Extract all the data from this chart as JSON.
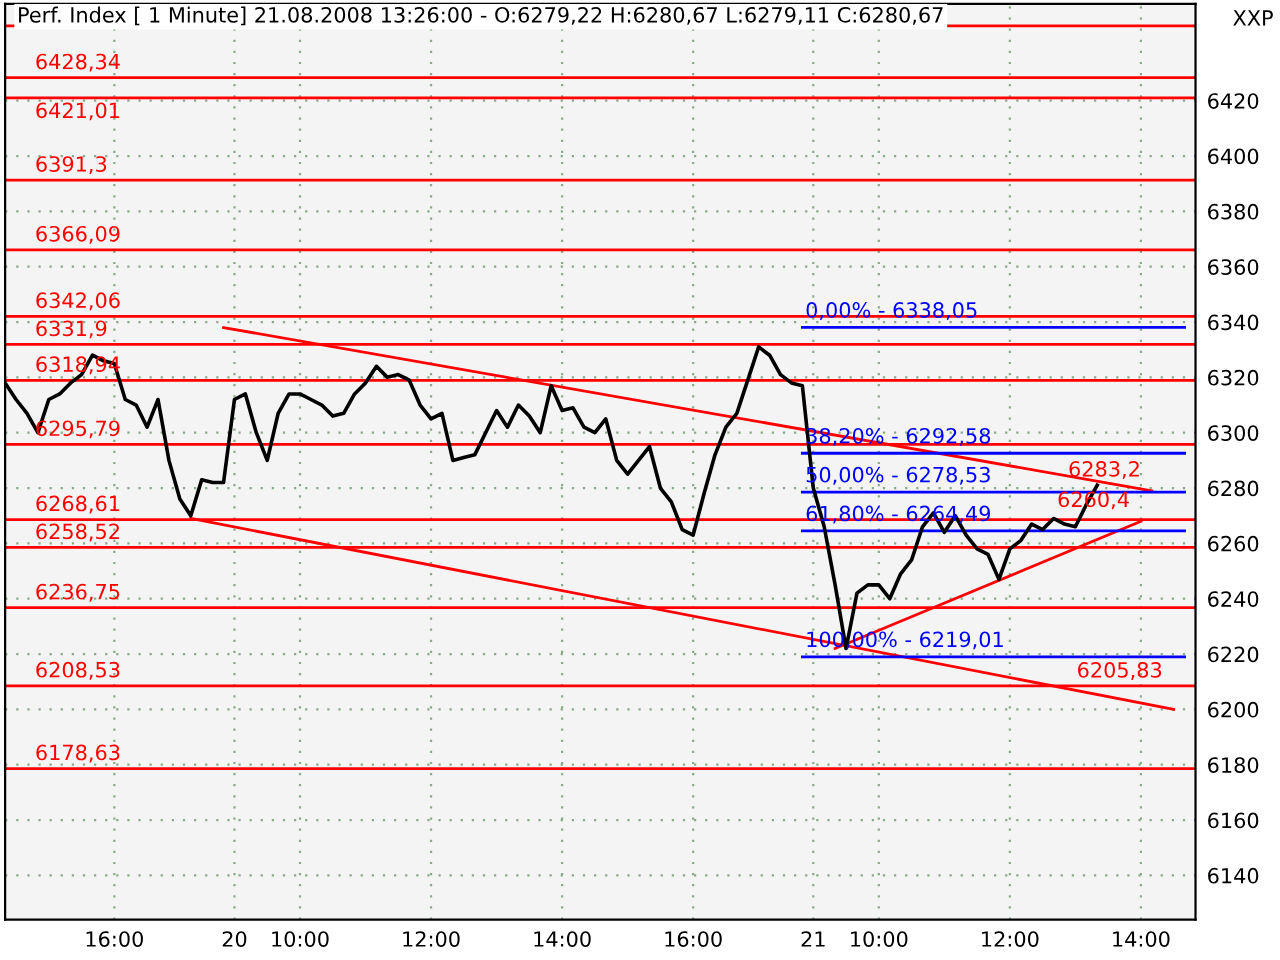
{
  "chart_data": {
    "type": "line",
    "title": "Perf. Index [ 1 Minute] 21.08.2008 13:26:00 - O:6279,22 H:6280,67 L:6279,11 C:6280,67",
    "annotations": [
      "XXP"
    ],
    "categories": [
      null,
      null,
      null,
      null,
      null,
      null,
      null,
      null,
      null,
      null,
      "16:00",
      null,
      null,
      null,
      null,
      null,
      null,
      null,
      null,
      null,
      null,
      "20",
      null,
      null,
      null,
      null,
      null,
      "10:00",
      null,
      null,
      null,
      null,
      null,
      null,
      null,
      null,
      null,
      null,
      null,
      "12:00",
      null,
      null,
      null,
      null,
      null,
      null,
      null,
      null,
      null,
      null,
      null,
      "14:00",
      null,
      null,
      null,
      null,
      null,
      null,
      null,
      null,
      null,
      null,
      null,
      "16:00",
      null,
      null,
      null,
      null,
      null,
      null,
      null,
      null,
      null,
      null,
      "21",
      null,
      null,
      null,
      null,
      null,
      "10:00",
      null,
      null,
      null,
      null,
      null,
      null,
      null,
      null,
      null,
      null,
      null,
      "12:00",
      null,
      null,
      null,
      null,
      null,
      null,
      null,
      null,
      null,
      null,
      null,
      "14:00",
      null,
      null,
      null,
      null
    ],
    "series": [
      {
        "color": "#000000",
        "values": [
          6318,
          6312,
          6307,
          6300,
          6312,
          6314,
          6318,
          6321,
          6328,
          6326,
          6325,
          6312,
          6310,
          6302,
          6312,
          6290,
          6276,
          6270,
          6283,
          6282,
          6282,
          6312,
          6314,
          6300,
          6290,
          6307,
          6314,
          6314,
          6312,
          6310,
          6306,
          6307,
          6314,
          6318,
          6324,
          6320,
          6321,
          6319,
          6310,
          6305,
          6307,
          6290,
          6291,
          6292,
          6300,
          6308,
          6302,
          6310,
          6306,
          6300,
          6317,
          6308,
          6309,
          6302,
          6300,
          6305,
          6290,
          6285,
          6290,
          6295,
          6280,
          6275,
          6265,
          6263,
          6278,
          6292,
          6302,
          6307,
          6319,
          6331,
          6328,
          6321,
          6318,
          6317,
          6280,
          6266,
          6245,
          6222,
          6242,
          6245,
          6245,
          6240,
          6249,
          6254,
          6266,
          6271,
          6264,
          6270,
          6263,
          6258,
          6256,
          6247,
          6258,
          6261,
          6267,
          6265,
          6269,
          6267,
          6266,
          6274,
          6281,
          null,
          null,
          null,
          null,
          null,
          null,
          null,
          null
        ]
      },
      {
        "name": "6283,2",
        "color": "#ff0000",
        "values": [
          null,
          null,
          null,
          null,
          null,
          null,
          null,
          null,
          null,
          null,
          null,
          null,
          null,
          null,
          null,
          null,
          null,
          null,
          null,
          null,
          6338,
          null,
          null,
          null,
          null,
          null,
          null,
          null,
          null,
          null,
          null,
          null,
          null,
          null,
          null,
          null,
          null,
          null,
          null,
          null,
          null,
          null,
          null,
          null,
          null,
          null,
          null,
          null,
          null,
          null,
          null,
          null,
          null,
          null,
          null,
          null,
          null,
          null,
          null,
          null,
          null,
          null,
          null,
          null,
          null,
          null,
          null,
          null,
          null,
          null,
          null,
          null,
          null,
          null,
          null,
          null,
          null,
          null,
          null,
          null,
          null,
          null,
          null,
          null,
          null,
          null,
          null,
          null,
          null,
          null,
          null,
          null,
          null,
          null,
          null,
          null,
          null,
          null,
          null,
          null,
          null,
          null,
          null,
          null,
          null,
          6279,
          null,
          null,
          null
        ]
      },
      {
        "name": "6205,83",
        "color": "#ff0000",
        "values": [
          null,
          null,
          null,
          null,
          null,
          null,
          null,
          null,
          null,
          null,
          null,
          null,
          null,
          null,
          null,
          null,
          null,
          6269,
          null,
          null,
          null,
          null,
          null,
          null,
          null,
          null,
          null,
          null,
          null,
          null,
          null,
          null,
          null,
          null,
          null,
          null,
          null,
          null,
          null,
          null,
          null,
          null,
          null,
          null,
          null,
          null,
          null,
          null,
          null,
          null,
          null,
          null,
          null,
          null,
          null,
          null,
          null,
          null,
          null,
          null,
          null,
          null,
          null,
          null,
          null,
          null,
          null,
          null,
          null,
          null,
          null,
          null,
          null,
          null,
          null,
          null,
          null,
          null,
          null,
          null,
          null,
          null,
          null,
          null,
          null,
          null,
          null,
          null,
          null,
          null,
          null,
          null,
          null,
          null,
          null,
          null,
          null,
          null,
          null,
          null,
          null,
          null,
          null,
          null,
          null,
          null,
          null,
          6200,
          null
        ]
      },
      {
        "name": "6260,4",
        "color": "#ff0000",
        "values": [
          null,
          null,
          null,
          null,
          null,
          null,
          null,
          null,
          null,
          null,
          null,
          null,
          null,
          null,
          null,
          null,
          null,
          null,
          null,
          null,
          null,
          null,
          null,
          null,
          null,
          null,
          null,
          null,
          null,
          null,
          null,
          null,
          null,
          null,
          null,
          null,
          null,
          null,
          null,
          null,
          null,
          null,
          null,
          null,
          null,
          null,
          null,
          null,
          null,
          null,
          null,
          null,
          null,
          null,
          null,
          null,
          null,
          null,
          null,
          null,
          null,
          null,
          null,
          null,
          null,
          null,
          null,
          null,
          null,
          null,
          null,
          null,
          null,
          null,
          null,
          null,
          6222,
          null,
          null,
          null,
          null,
          null,
          null,
          null,
          null,
          null,
          null,
          null,
          null,
          null,
          null,
          null,
          null,
          null,
          null,
          null,
          null,
          null,
          null,
          null,
          null,
          null,
          null,
          null,
          6268,
          null,
          null,
          null,
          null
        ]
      },
      {
        "name": "0,00% - 6338,05",
        "color": "#0000ff",
        "values": [
          null,
          null,
          null,
          null,
          null,
          null,
          null,
          null,
          null,
          null,
          null,
          null,
          null,
          null,
          null,
          null,
          null,
          null,
          null,
          null,
          null,
          null,
          null,
          null,
          null,
          null,
          null,
          null,
          null,
          null,
          null,
          null,
          null,
          null,
          null,
          null,
          null,
          null,
          null,
          null,
          null,
          null,
          null,
          null,
          null,
          null,
          null,
          null,
          null,
          null,
          null,
          null,
          null,
          null,
          null,
          null,
          null,
          null,
          null,
          null,
          null,
          null,
          null,
          null,
          null,
          null,
          null,
          null,
          null,
          null,
          null,
          null,
          null,
          6338.05,
          null,
          null,
          null,
          null,
          null,
          null,
          null,
          null,
          null,
          null,
          null,
          null,
          null,
          null,
          null,
          null,
          null,
          null,
          null,
          null,
          null,
          null,
          null,
          null,
          null,
          null,
          null,
          null,
          null,
          null,
          null,
          null,
          null,
          null,
          6338.05
        ]
      },
      {
        "name": "38,20% - 6292,58",
        "color": "#0000ff",
        "values": [
          null,
          null,
          null,
          null,
          null,
          null,
          null,
          null,
          null,
          null,
          null,
          null,
          null,
          null,
          null,
          null,
          null,
          null,
          null,
          null,
          null,
          null,
          null,
          null,
          null,
          null,
          null,
          null,
          null,
          null,
          null,
          null,
          null,
          null,
          null,
          null,
          null,
          null,
          null,
          null,
          null,
          null,
          null,
          null,
          null,
          null,
          null,
          null,
          null,
          null,
          null,
          null,
          null,
          null,
          null,
          null,
          null,
          null,
          null,
          null,
          null,
          null,
          null,
          null,
          null,
          null,
          null,
          null,
          null,
          null,
          null,
          null,
          null,
          6292.58,
          null,
          null,
          null,
          null,
          null,
          null,
          null,
          null,
          null,
          null,
          null,
          null,
          null,
          null,
          null,
          null,
          null,
          null,
          null,
          null,
          null,
          null,
          null,
          null,
          null,
          null,
          null,
          null,
          null,
          null,
          null,
          null,
          null,
          null,
          6292.58
        ]
      },
      {
        "name": "50,00% - 6278,53",
        "color": "#0000ff",
        "values": [
          null,
          null,
          null,
          null,
          null,
          null,
          null,
          null,
          null,
          null,
          null,
          null,
          null,
          null,
          null,
          null,
          null,
          null,
          null,
          null,
          null,
          null,
          null,
          null,
          null,
          null,
          null,
          null,
          null,
          null,
          null,
          null,
          null,
          null,
          null,
          null,
          null,
          null,
          null,
          null,
          null,
          null,
          null,
          null,
          null,
          null,
          null,
          null,
          null,
          null,
          null,
          null,
          null,
          null,
          null,
          null,
          null,
          null,
          null,
          null,
          null,
          null,
          null,
          null,
          null,
          null,
          null,
          null,
          null,
          null,
          null,
          null,
          null,
          6278.53,
          null,
          null,
          null,
          null,
          null,
          null,
          null,
          null,
          null,
          null,
          null,
          null,
          null,
          null,
          null,
          null,
          null,
          null,
          null,
          null,
          null,
          null,
          null,
          null,
          null,
          null,
          null,
          null,
          null,
          null,
          null,
          null,
          null,
          null,
          6278.53
        ]
      },
      {
        "name": "61,80% - 6264,49",
        "color": "#0000ff",
        "values": [
          null,
          null,
          null,
          null,
          null,
          null,
          null,
          null,
          null,
          null,
          null,
          null,
          null,
          null,
          null,
          null,
          null,
          null,
          null,
          null,
          null,
          null,
          null,
          null,
          null,
          null,
          null,
          null,
          null,
          null,
          null,
          null,
          null,
          null,
          null,
          null,
          null,
          null,
          null,
          null,
          null,
          null,
          null,
          null,
          null,
          null,
          null,
          null,
          null,
          null,
          null,
          null,
          null,
          null,
          null,
          null,
          null,
          null,
          null,
          null,
          null,
          null,
          null,
          null,
          null,
          null,
          null,
          null,
          null,
          null,
          null,
          null,
          null,
          6264.49,
          null,
          null,
          null,
          null,
          null,
          null,
          null,
          null,
          null,
          null,
          null,
          null,
          null,
          null,
          null,
          null,
          null,
          null,
          null,
          null,
          null,
          null,
          null,
          null,
          null,
          null,
          null,
          null,
          null,
          null,
          null,
          null,
          null,
          null,
          6264.49
        ]
      },
      {
        "name": "100,00% - 6219,01",
        "color": "#0000ff",
        "values": [
          null,
          null,
          null,
          null,
          null,
          null,
          null,
          null,
          null,
          null,
          null,
          null,
          null,
          null,
          null,
          null,
          null,
          null,
          null,
          null,
          null,
          null,
          null,
          null,
          null,
          null,
          null,
          null,
          null,
          null,
          null,
          null,
          null,
          null,
          null,
          null,
          null,
          null,
          null,
          null,
          null,
          null,
          null,
          null,
          null,
          null,
          null,
          null,
          null,
          null,
          null,
          null,
          null,
          null,
          null,
          null,
          null,
          null,
          null,
          null,
          null,
          null,
          null,
          null,
          null,
          null,
          null,
          null,
          null,
          null,
          null,
          null,
          null,
          6219.01,
          null,
          null,
          null,
          null,
          null,
          null,
          null,
          null,
          null,
          null,
          null,
          null,
          null,
          null,
          null,
          null,
          null,
          null,
          null,
          null,
          null,
          null,
          null,
          null,
          null,
          null,
          null,
          null,
          null,
          null,
          null,
          null,
          null,
          null,
          6219.01
        ]
      }
    ],
    "ylim": [
      6124,
      6455
    ],
    "yticks": [
      6140,
      6160,
      6180,
      6200,
      6220,
      6240,
      6260,
      6280,
      6300,
      6320,
      6340,
      6360,
      6380,
      6400,
      6420
    ],
    "ref_lines": [
      {
        "axis": "y",
        "value": 6447,
        "color": "#ff0000"
      },
      {
        "axis": "y",
        "value": 6428.34,
        "label": "6428,34",
        "color": "#ff0000"
      },
      {
        "axis": "y",
        "value": 6421.01,
        "label": "6421,01",
        "color": "#ff0000"
      },
      {
        "axis": "y",
        "value": 6391.3,
        "label": "6391,3",
        "color": "#ff0000"
      },
      {
        "axis": "y",
        "value": 6366.09,
        "label": "6366,09",
        "color": "#ff0000"
      },
      {
        "axis": "y",
        "value": 6342.06,
        "label": "6342,06",
        "color": "#ff0000"
      },
      {
        "axis": "y",
        "value": 6331.9,
        "label": "6331,9",
        "color": "#ff0000"
      },
      {
        "axis": "y",
        "value": 6318.94,
        "label": "6318,94",
        "color": "#ff0000"
      },
      {
        "axis": "y",
        "value": 6295.79,
        "label": "6295,79",
        "color": "#ff0000"
      },
      {
        "axis": "y",
        "value": 6268.61,
        "label": "6268,61",
        "color": "#ff0000"
      },
      {
        "axis": "y",
        "value": 6258.52,
        "label": "6258,52",
        "color": "#ff0000"
      },
      {
        "axis": "y",
        "value": 6236.75,
        "label": "6236,75",
        "color": "#ff0000"
      },
      {
        "axis": "y",
        "value": 6208.53,
        "label": "6208,53",
        "color": "#ff0000"
      },
      {
        "axis": "y",
        "value": 6178.63,
        "label": "6178,63",
        "color": "#ff0000"
      }
    ],
    "grid": true,
    "legend": false,
    "marker": "none",
    "line_style": "solid"
  }
}
